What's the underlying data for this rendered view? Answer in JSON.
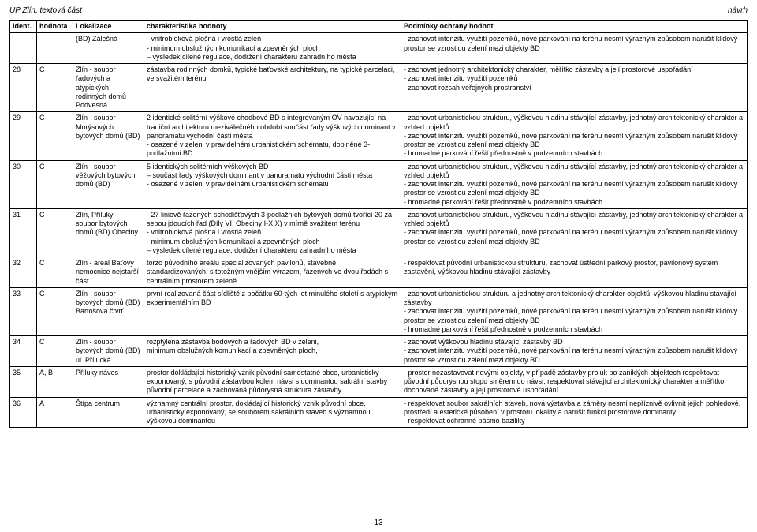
{
  "header": {
    "left": "ÚP Zlín, textová část",
    "right": "návrh"
  },
  "pageNumber": "13",
  "columns": {
    "ident": "ident.",
    "hodnota": "hodnota",
    "lokalizace": "Lokalizace",
    "charakteristika": "charakteristika hodnoty",
    "podminky": "Podmínky ochrany hodnot"
  },
  "rows": [
    {
      "ident": "",
      "hodnota": "",
      "lokalizace": "(BD) Zálešná",
      "charakteristika": "- vnitrobloková plošná i vrostlá zeleň\n- minimum obslužných komunikací a zpevněných ploch\n– výsledek cílené regulace, dodržení charakteru zahradního města",
      "podminky": "- zachovat intenzitu využití pozemků, nové parkování na terénu nesmí výrazným způsobem narušit klidový prostor se vzrostlou zelení mezi objekty BD"
    },
    {
      "ident": "28",
      "hodnota": "C",
      "lokalizace": "Zlín - soubor řadových a atypických rodinných domů Podvesná",
      "charakteristika": "zástavba rodinných domků, typické baťovské architektury, na typické parcelaci, ve svažitém terénu",
      "podminky": "- zachovat jednotný architektonický charakter, měřítko zástavby a její prostorové uspořádání\n- zachovat intenzitu využití pozemků\n- zachovat rozsah veřejných prostranství"
    },
    {
      "ident": "29",
      "hodnota": "C",
      "lokalizace": "Zlín - soubor Morýsových bytových domů (BD)",
      "charakteristika": "2 identické solitérní výškové chodbové BD s integrovaným OV navazující na tradiční architekturu meziválečného období součást řady výškových dominant v panoramatu východní části města\n- osazené v zeleni v pravidelném urbanistickém schématu, doplněné 3-podlažními BD",
      "podminky": "- zachovat urbanistickou strukturu, výškovou hladinu stávající zástavby, jednotný architektonický charakter a vzhled objektů\n- zachovat intenzitu využití pozemků, nové parkování na terénu nesmí výrazným způsobem narušit klidový prostor se vzrostlou zelení mezi objekty BD\n- hromadné parkování řešit přednostně v podzemních stavbách"
    },
    {
      "ident": "30",
      "hodnota": "C",
      "lokalizace": "Zlín - soubor věžových bytových domů (BD)",
      "charakteristika": "5 identických solitérních výškových BD\n– součást řady výškových dominant v panoramatu východní části města\n- osazené v zeleni v pravidelném urbanistickém schématu",
      "podminky": "- zachovat urbanistickou strukturu,  výškovou hladinu stávající zástavby, jednotný architektonický charakter a vzhled objektů\n- zachovat intenzitu využití pozemků, nové parkování na terénu nesmí výrazným způsobem narušit klidový prostor se vzrostlou zelení mezi objekty BD\n- hromadné parkování řešit přednostně v podzemních stavbách"
    },
    {
      "ident": "31",
      "hodnota": "C",
      "lokalizace": "Zlín, Příluky - soubor bytových domů (BD) Obeciny",
      "charakteristika": "- 27 liniově řazených schodišťových 3-podlažních bytových domů tvořící 20 za sebou jdoucích řad (Díly VI, Obeciny I-XIX) v mírně svažitém terénu\n- vnitrobloková plošná i vrostlá zeleň\n- minimum obslužných komunikací a zpevněných ploch\n– výsledek cílené regulace, dodržení charakteru zahradního města",
      "podminky": "- zachovat urbanistickou strukturu, výškovou hladinu stávající zástavby, jednotný architektonický charakter a vzhled objektů\n- zachovat intenzitu využití pozemků, nové parkování na terénu nesmí výrazným způsobem narušit klidový prostor se vzrostlou zelení mezi objekty BD"
    },
    {
      "ident": "32",
      "hodnota": "C",
      "lokalizace": "Zlín - areál Baťovy nemocnice nejstarší část",
      "charakteristika": "torzo  původního  areálu  specializovaných  pavilonů,  stavebně standardizovaných, s totožným vnějším výrazem, řazených ve dvou řadách s centrálním prostorem zeleně",
      "podminky": "- respektovat původní urbanistickou strukturu, zachovat ústřední parkový prostor, pavilonový systém zastavění, výškovou hladinu stávající zástavby"
    },
    {
      "ident": "33",
      "hodnota": "C",
      "lokalizace": "Zlín - soubor bytových domů (BD) Bartošova čtvrť",
      "charakteristika": "první realizovaná část sídliště z počátku 60-tých let minulého století s atypickým experimentálním BD",
      "podminky": "- zachovat urbanistickou strukturu a jednotný architektonický charakter objektů, výškovou hladinu stávající zástavby\n- zachovat intenzitu využití pozemků, nové parkování na terénu nesmí výrazným způsobem narušit klidový prostor se vzrostlou zelení mezi objekty BD\n- hromadné parkování řešit přednostně v podzemních stavbách"
    },
    {
      "ident": "34",
      "hodnota": "C",
      "lokalizace": "Zlín - soubor bytových domů (BD) ul. Přílucká",
      "charakteristika": "rozptýlená zástavba bodových a řadových BD v zeleni,\nminimum obslužných komunikací a zpevněných ploch,",
      "podminky": "- zachovat výškovou hladinu stávající zástavby BD\n- zachovat intenzitu využití pozemků, nové parkování na terénu nesmí výrazným způsobem narušit klidový prostor se vzrostlou zelení mezi objekty BD"
    },
    {
      "ident": "35",
      "hodnota": "A, B",
      "lokalizace": "Příluky náves",
      "charakteristika": "prostor dokládající historický vznik původní samostatné obce, urbanisticky exponovaný, s původní zástavbou kolem návsi s dominantou sakrální stavby\npůvodní parcelace a zachovaná půdorysná struktura zástavby",
      "podminky": "- prostor nezastavovat novými objekty, v případě zástavby proluk po zaniklých objektech respektovat původní půdorysnou stopu směrem do návsi, respektovat stávající architektonický charakter a měřítko dochované zástavby a její prostorové uspořádání"
    },
    {
      "ident": "36",
      "hodnota": "A",
      "lokalizace": "Štípa centrum",
      "charakteristika": "významný centrální prostor, dokládající historický vznik původní obce, urbanisticky exponovaný, se souborem sakrálních staveb s významnou výškovou dominantou",
      "podminky": "- respektovat soubor sakrálních staveb, nová výstavba a záměry nesmí nepříznivě ovlivnit jejich pohledové, prostředí a estetické působení v prostoru lokality a narušit funkci prostorové dominanty\n- respektovat ochranné pásmo baziliky"
    }
  ]
}
